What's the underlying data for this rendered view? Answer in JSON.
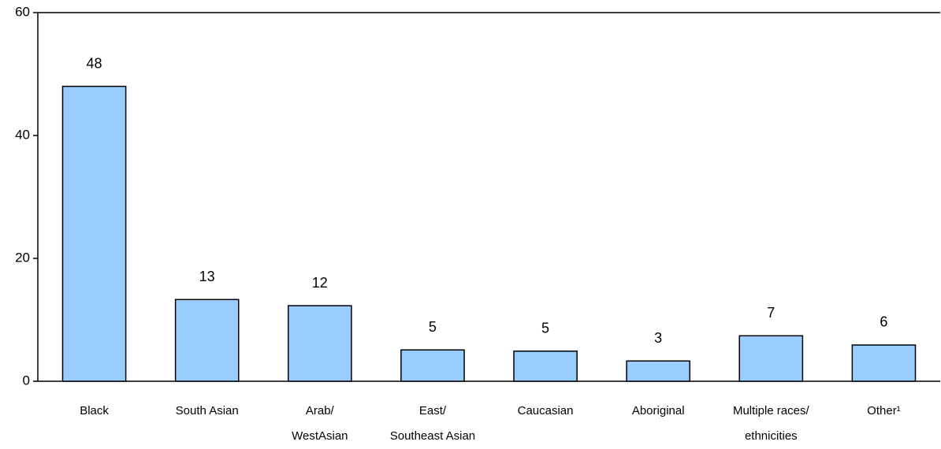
{
  "chart_data": {
    "type": "bar",
    "categories": [
      [
        "Black"
      ],
      [
        "South Asian"
      ],
      [
        "Arab/",
        "WestAsian"
      ],
      [
        "East/",
        "Southeast Asian"
      ],
      [
        "Caucasian"
      ],
      [
        "Aboriginal"
      ],
      [
        "Multiple races/",
        "ethnicities"
      ],
      [
        "Other¹"
      ]
    ],
    "values": [
      48,
      13.3,
      12.3,
      5.1,
      4.9,
      3.3,
      7.4,
      5.9
    ],
    "value_labels": [
      "48",
      "13",
      "12",
      "5",
      "5",
      "3",
      "7",
      "6"
    ],
    "color": "#99ccff",
    "ylim": [
      0,
      60
    ],
    "yticks": [
      0,
      20,
      40,
      60
    ]
  }
}
